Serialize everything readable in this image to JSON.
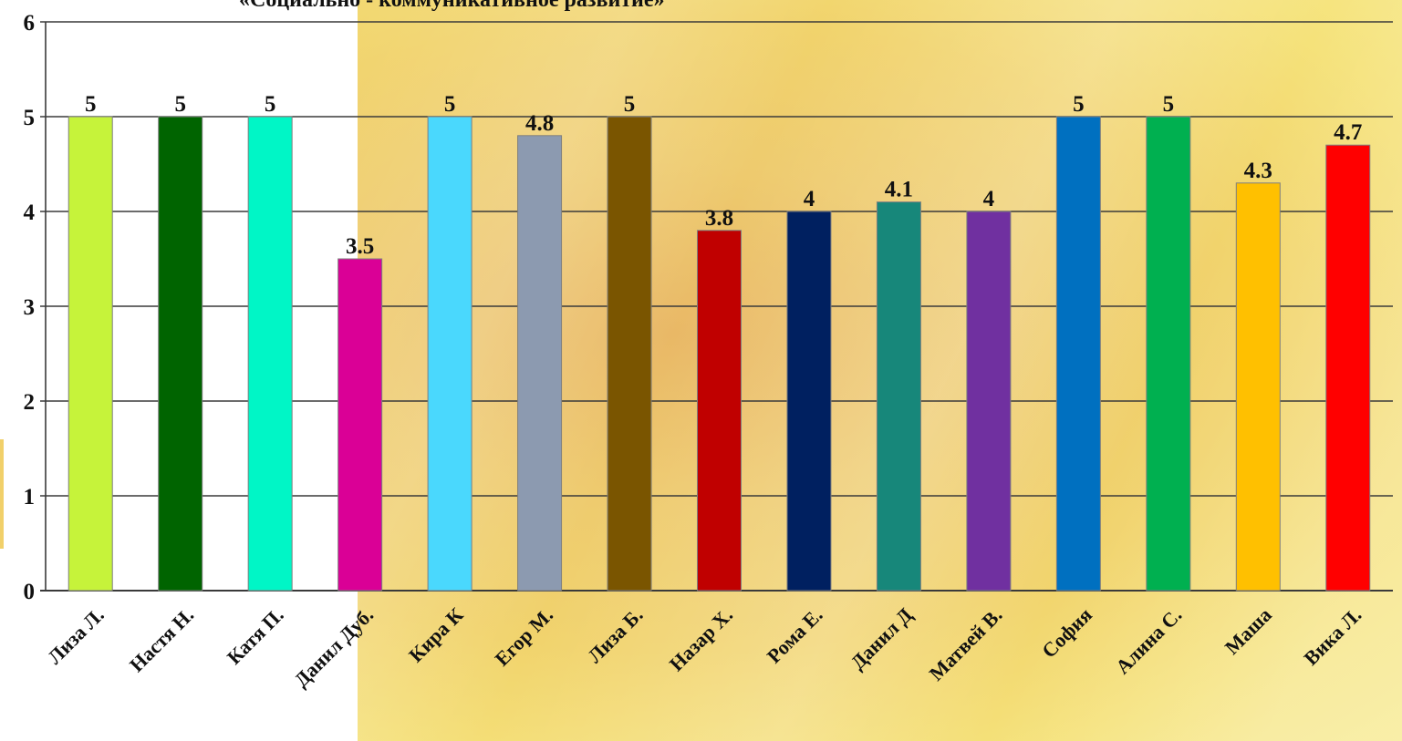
{
  "chart_data": {
    "type": "bar",
    "title": "«Социально - коммуникативное развитие»",
    "categories": [
      "Лиза Л.",
      "Настя Н.",
      "Катя П.",
      "Данил Дуб.",
      "Кира К",
      "Егор М.",
      "Лиза Б.",
      "Назар Х.",
      "Рома Е.",
      "Данил Д",
      "Матвей В.",
      "София",
      "Алина С.",
      "Маша",
      "Вика Л."
    ],
    "values": [
      5,
      5,
      5,
      3.5,
      5,
      4.8,
      5,
      3.8,
      4,
      4.1,
      4,
      5,
      5,
      4.3,
      4.7
    ],
    "colors": [
      "#c6f33a",
      "#006400",
      "#00f6c6",
      "#da0096",
      "#4ad8fd",
      "#8c9ab0",
      "#7a5500",
      "#c00000",
      "#002060",
      "#17877a",
      "#7030a0",
      "#0070c0",
      "#00b050",
      "#ffc000",
      "#ff0000"
    ],
    "ylim": [
      0,
      6
    ],
    "yticks": [
      0,
      1,
      2,
      3,
      4,
      5,
      6
    ],
    "grid": true,
    "legend": "none",
    "xlabel": "",
    "ylabel": ""
  }
}
